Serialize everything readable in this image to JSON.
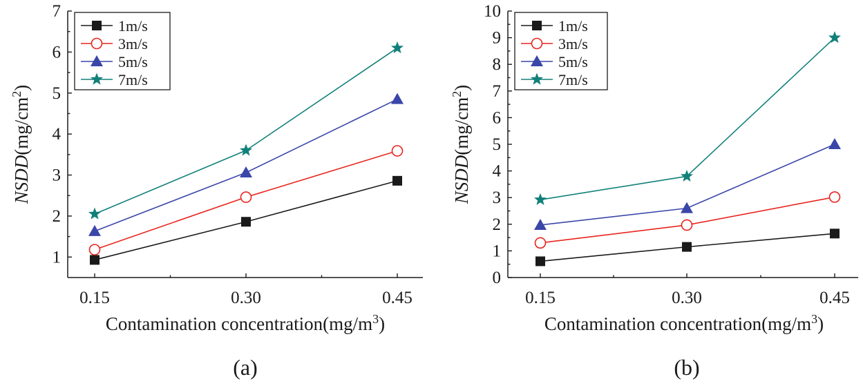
{
  "chart_data": [
    {
      "type": "line",
      "panel_label": "(a)",
      "xlabel": "Contamination concentration(mg/m",
      "xlabel_sup": "3",
      "xlabel_tail": ")",
      "ylabel_italic": "NSDD",
      "ylabel_unit": "(mg/cm",
      "ylabel_sup": "2",
      "ylabel_tail": ")",
      "categories": [
        "0.15",
        "0.30",
        "0.45"
      ],
      "x": [
        0.15,
        0.3,
        0.45
      ],
      "ylim": [
        0.5,
        7
      ],
      "yticks": [
        "1",
        "2",
        "3",
        "4",
        "5",
        "6",
        "7"
      ],
      "legend_position": "top-left",
      "series": [
        {
          "name": "1m/s",
          "marker": "square",
          "color": "#1a1a1a",
          "line_color": "#1a1a1a",
          "values": [
            0.93,
            1.86,
            2.86
          ]
        },
        {
          "name": "3m/s",
          "marker": "circle",
          "color": "#e8241c",
          "line_color": "#e8241c",
          "values": [
            1.18,
            2.46,
            3.59
          ]
        },
        {
          "name": "5m/s",
          "marker": "triangle",
          "color": "#3a46a8",
          "line_color": "#3a46a8",
          "values": [
            1.63,
            3.06,
            4.85
          ]
        },
        {
          "name": "7m/s",
          "marker": "star",
          "color": "#12807a",
          "line_color": "#12807a",
          "values": [
            2.05,
            3.6,
            6.1
          ]
        }
      ]
    },
    {
      "type": "line",
      "panel_label": "(b)",
      "xlabel": "Contamination concentration(mg/m",
      "xlabel_sup": "3",
      "xlabel_tail": ")",
      "ylabel_italic": "NSDD",
      "ylabel_unit": "(mg/cm",
      "ylabel_sup": "2",
      "ylabel_tail": ")",
      "categories": [
        "0.15",
        "0.30",
        "0.45"
      ],
      "x": [
        0.15,
        0.3,
        0.45
      ],
      "ylim": [
        0,
        10
      ],
      "yticks": [
        "0",
        "1",
        "2",
        "3",
        "4",
        "5",
        "6",
        "7",
        "8",
        "9",
        "10"
      ],
      "legend_position": "top-left",
      "series": [
        {
          "name": "1m/s",
          "marker": "square",
          "color": "#1a1a1a",
          "line_color": "#1a1a1a",
          "values": [
            0.61,
            1.15,
            1.65
          ]
        },
        {
          "name": "3m/s",
          "marker": "circle",
          "color": "#e8241c",
          "line_color": "#e8241c",
          "values": [
            1.3,
            1.97,
            3.02
          ]
        },
        {
          "name": "5m/s",
          "marker": "triangle",
          "color": "#3a46a8",
          "line_color": "#3a46a8",
          "values": [
            1.97,
            2.6,
            5.0
          ]
        },
        {
          "name": "7m/s",
          "marker": "star",
          "color": "#12807a",
          "line_color": "#12807a",
          "values": [
            2.92,
            3.8,
            9.0
          ]
        }
      ]
    }
  ]
}
